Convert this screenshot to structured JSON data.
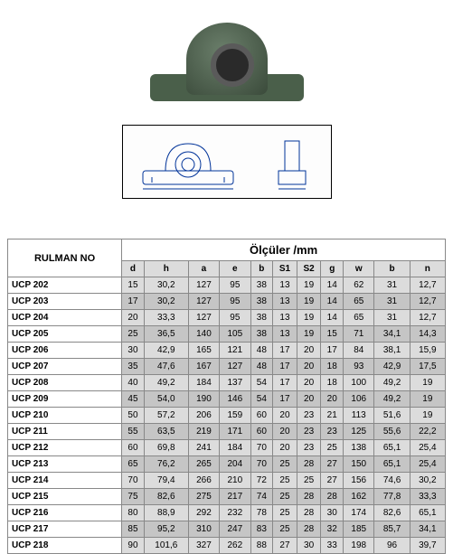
{
  "headers": {
    "rulman": "RULMAN NO",
    "olculer": "Ölçüler /mm"
  },
  "columns": [
    "d",
    "h",
    "a",
    "e",
    "b",
    "S1",
    "S2",
    "g",
    "w",
    "b",
    "n"
  ],
  "rows": [
    {
      "model": "UCP 202",
      "vals": [
        "15",
        "30,2",
        "127",
        "95",
        "38",
        "13",
        "19",
        "14",
        "62",
        "31",
        "12,7"
      ]
    },
    {
      "model": "UCP 203",
      "vals": [
        "17",
        "30,2",
        "127",
        "95",
        "38",
        "13",
        "19",
        "14",
        "65",
        "31",
        "12,7"
      ]
    },
    {
      "model": "UCP 204",
      "vals": [
        "20",
        "33,3",
        "127",
        "95",
        "38",
        "13",
        "19",
        "14",
        "65",
        "31",
        "12,7"
      ]
    },
    {
      "model": "UCP 205",
      "vals": [
        "25",
        "36,5",
        "140",
        "105",
        "38",
        "13",
        "19",
        "15",
        "71",
        "34,1",
        "14,3"
      ]
    },
    {
      "model": "UCP 206",
      "vals": [
        "30",
        "42,9",
        "165",
        "121",
        "48",
        "17",
        "20",
        "17",
        "84",
        "38,1",
        "15,9"
      ]
    },
    {
      "model": "UCP 207",
      "vals": [
        "35",
        "47,6",
        "167",
        "127",
        "48",
        "17",
        "20",
        "18",
        "93",
        "42,9",
        "17,5"
      ]
    },
    {
      "model": "UCP 208",
      "vals": [
        "40",
        "49,2",
        "184",
        "137",
        "54",
        "17",
        "20",
        "18",
        "100",
        "49,2",
        "19"
      ]
    },
    {
      "model": "UCP 209",
      "vals": [
        "45",
        "54,0",
        "190",
        "146",
        "54",
        "17",
        "20",
        "20",
        "106",
        "49,2",
        "19"
      ]
    },
    {
      "model": "UCP 210",
      "vals": [
        "50",
        "57,2",
        "206",
        "159",
        "60",
        "20",
        "23",
        "21",
        "113",
        "51,6",
        "19"
      ]
    },
    {
      "model": "UCP 211",
      "vals": [
        "55",
        "63,5",
        "219",
        "171",
        "60",
        "20",
        "23",
        "23",
        "125",
        "55,6",
        "22,2"
      ]
    },
    {
      "model": "UCP 212",
      "vals": [
        "60",
        "69,8",
        "241",
        "184",
        "70",
        "20",
        "23",
        "25",
        "138",
        "65,1",
        "25,4"
      ]
    },
    {
      "model": "UCP 213",
      "vals": [
        "65",
        "76,2",
        "265",
        "204",
        "70",
        "25",
        "28",
        "27",
        "150",
        "65,1",
        "25,4"
      ]
    },
    {
      "model": "UCP 214",
      "vals": [
        "70",
        "79,4",
        "266",
        "210",
        "72",
        "25",
        "25",
        "27",
        "156",
        "74,6",
        "30,2"
      ]
    },
    {
      "model": "UCP 215",
      "vals": [
        "75",
        "82,6",
        "275",
        "217",
        "74",
        "25",
        "28",
        "28",
        "162",
        "77,8",
        "33,3"
      ]
    },
    {
      "model": "UCP 216",
      "vals": [
        "80",
        "88,9",
        "292",
        "232",
        "78",
        "25",
        "28",
        "30",
        "174",
        "82,6",
        "65,1"
      ]
    },
    {
      "model": "UCP 217",
      "vals": [
        "85",
        "95,2",
        "310",
        "247",
        "83",
        "25",
        "28",
        "32",
        "185",
        "85,7",
        "34,1"
      ]
    },
    {
      "model": "UCP 218",
      "vals": [
        "90",
        "101,6",
        "327",
        "262",
        "88",
        "27",
        "30",
        "33",
        "198",
        "96",
        "39,7"
      ]
    }
  ],
  "style": {
    "header_bg": "#ffffff",
    "dim_bg": "#dcdcdc",
    "row_even_bg": "#dcdcdc",
    "row_odd_bg": "#c5c5c5",
    "border_color": "#888888",
    "font_family": "Arial",
    "header_fontsize": 11,
    "cell_fontsize": 10
  }
}
